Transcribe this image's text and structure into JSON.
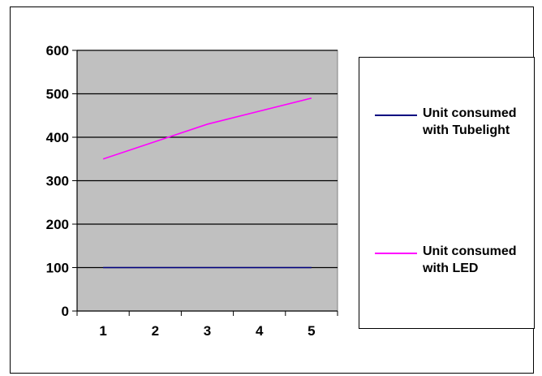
{
  "chart_data": {
    "type": "line",
    "title": "",
    "xlabel": "",
    "ylabel": "",
    "x": [
      1,
      2,
      3,
      4,
      5
    ],
    "x_tick_labels": [
      "1",
      "2",
      "3",
      "4",
      "5"
    ],
    "y_tick_labels": [
      "0",
      "100",
      "200",
      "300",
      "400",
      "500",
      "600"
    ],
    "ylim": [
      0,
      600
    ],
    "y_step": 100,
    "grid": "horizontal major gridlines",
    "plot_background": "#c0c0c0",
    "legend_position": "right",
    "series": [
      {
        "name": "Unit consumed with Tubelight",
        "color": "#000080",
        "values": [
          100,
          100,
          100,
          100,
          100
        ]
      },
      {
        "name": "Unit consumed with LED",
        "color": "#ff00ff",
        "values": [
          350,
          390,
          430,
          460,
          490
        ]
      }
    ]
  }
}
